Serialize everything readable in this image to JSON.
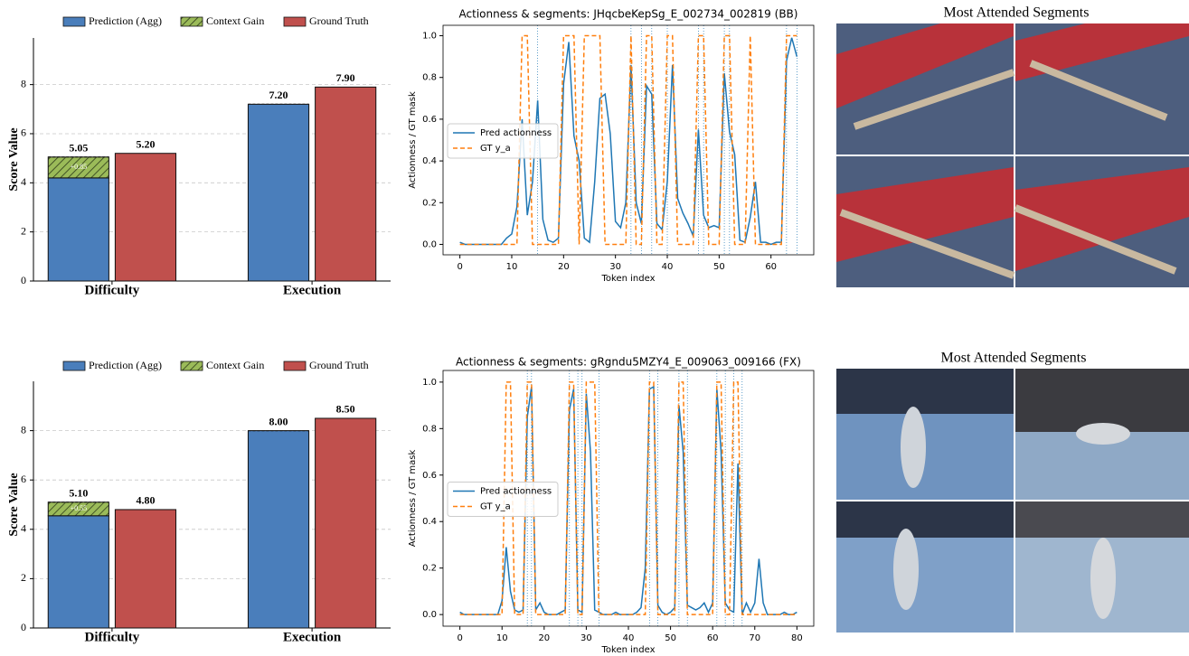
{
  "chart_data": [
    {
      "type": "bar",
      "ylabel": "Score Value",
      "categories": [
        "Difficulty",
        "Execution"
      ],
      "series": [
        {
          "name": "Prediction (Agg)",
          "color": "#4a7ebb",
          "values": [
            4.2,
            7.2
          ]
        },
        {
          "name": "Context Gain",
          "color": "#9bbb59",
          "hatch": true,
          "stacked": true,
          "values": [
            0.85,
            0
          ],
          "value_labels": [
            "+0.85",
            null
          ]
        },
        {
          "name": "Ground Truth",
          "color": "#c0504d",
          "values": [
            5.2,
            7.9
          ],
          "value_labels": [
            "5.20",
            "7.90"
          ]
        }
      ],
      "totals": [
        5.05,
        7.2
      ],
      "total_labels": [
        "5.05",
        "7.20"
      ],
      "ylim": [
        0,
        9.9
      ],
      "yticks": [
        0,
        2,
        4,
        6,
        8
      ],
      "grid": true,
      "legend": "top"
    },
    {
      "type": "line",
      "title": "Actionness & segments: JHqcbeKepSg_E_002734_002819 (BB)",
      "xlabel": "Token index",
      "ylabel": "Actionness / GT mask",
      "series": [
        {
          "name": "Pred actionness",
          "color": "#1f77b4",
          "values": [
            0.01,
            0,
            0,
            0,
            0,
            0,
            0,
            0,
            0,
            0.03,
            0.05,
            0.18,
            0.6,
            0.14,
            0.3,
            0.69,
            0.12,
            0.02,
            0.01,
            0.03,
            0.77,
            0.97,
            0.52,
            0.4,
            0.03,
            0.01,
            0.3,
            0.7,
            0.72,
            0.53,
            0.11,
            0.08,
            0.2,
            0.86,
            0.2,
            0.1,
            0.76,
            0.72,
            0.1,
            0.07,
            0.3,
            0.86,
            0.22,
            0.15,
            0.1,
            0.04,
            0.55,
            0.14,
            0.08,
            0.09,
            0.08,
            0.82,
            0.54,
            0.43,
            0.02,
            0.01,
            0.13,
            0.3,
            0.01,
            0.01,
            0,
            0.01,
            0.01,
            0.88,
            0.99,
            0.9
          ]
        },
        {
          "name": "GT y_a",
          "color": "#ff7f0e",
          "dashed": true,
          "values": [
            0,
            0,
            0,
            0,
            0,
            0,
            0,
            0,
            0,
            0,
            0,
            0,
            1,
            1,
            0,
            0,
            0,
            0,
            0,
            0,
            1,
            1,
            1,
            0,
            1,
            1,
            1,
            1,
            0,
            0,
            0,
            0,
            0,
            1,
            0,
            0,
            1,
            1,
            0,
            0,
            1,
            1,
            0,
            0,
            0,
            0,
            1,
            1,
            0,
            0,
            0,
            1,
            1,
            0,
            0,
            0,
            1,
            0,
            0,
            0,
            0,
            0,
            0,
            1,
            1,
            1
          ]
        }
      ],
      "segment_lines": [
        15,
        33,
        35,
        37,
        40,
        46,
        47,
        51,
        52,
        63,
        65
      ],
      "xlim": [
        -3.25,
        68.25
      ],
      "xticks": [
        0,
        10,
        20,
        30,
        40,
        50,
        60
      ],
      "ylim": [
        -0.05,
        1.05
      ],
      "yticks": [
        {
          "value": 0,
          "label": "0.0"
        },
        0.2,
        0.4,
        0.6,
        0.8,
        {
          "value": 1,
          "label": "1.0"
        }
      ],
      "legend": "center left"
    },
    {
      "type": "bar",
      "ylabel": "Score Value",
      "categories": [
        "Difficulty",
        "Execution"
      ],
      "series": [
        {
          "name": "Prediction (Agg)",
          "color": "#4a7ebb",
          "values": [
            4.55,
            8.0
          ]
        },
        {
          "name": "Context Gain",
          "color": "#9bbb59",
          "hatch": true,
          "stacked": true,
          "values": [
            0.55,
            0
          ],
          "value_labels": [
            "+0.55",
            null
          ]
        },
        {
          "name": "Ground Truth",
          "color": "#c0504d",
          "values": [
            4.8,
            8.5
          ],
          "value_labels": [
            "4.80",
            "8.50"
          ]
        }
      ],
      "totals": [
        5.1,
        8.0
      ],
      "total_labels": [
        "5.10",
        "8.00"
      ],
      "ylim": [
        0,
        10
      ],
      "yticks": [
        0,
        2,
        4,
        6,
        8
      ],
      "grid": true,
      "legend": "top"
    },
    {
      "type": "line",
      "title": "Actionness & segments: gRgndu5MZY4_E_009063_009166 (FX)",
      "xlabel": "Token index",
      "ylabel": "Actionness / GT mask",
      "series": [
        {
          "name": "Pred actionness",
          "color": "#1f77b4",
          "values": [
            0.01,
            0,
            0,
            0,
            0,
            0,
            0,
            0,
            0,
            0,
            0.06,
            0.29,
            0.1,
            0.02,
            0.01,
            0.02,
            0.85,
            0.98,
            0.02,
            0.05,
            0.01,
            0,
            0,
            0,
            0.01,
            0.02,
            0.88,
            0.97,
            0.02,
            0.01,
            0.95,
            0.7,
            0.02,
            0.01,
            0,
            0,
            0,
            0.01,
            0,
            0,
            0,
            0,
            0.01,
            0.03,
            0.2,
            0.97,
            0.98,
            0.04,
            0.01,
            0,
            0.01,
            0.03,
            0.9,
            0.7,
            0.04,
            0.03,
            0.02,
            0.03,
            0.05,
            0.01,
            0.05,
            0.97,
            0.7,
            0.05,
            0.02,
            0.01,
            0.65,
            0,
            0.05,
            0.01,
            0.05,
            0.24,
            0.05,
            0,
            0,
            0,
            0,
            0.01,
            0,
            0,
            0.01
          ]
        },
        {
          "name": "GT y_a",
          "color": "#ff7f0e",
          "dashed": true,
          "values": [
            0,
            0,
            0,
            0,
            0,
            0,
            0,
            0,
            0,
            0,
            0,
            1,
            1,
            0,
            0,
            0,
            1,
            1,
            0,
            0,
            0,
            0,
            0,
            0,
            0,
            0,
            1,
            1,
            0,
            0,
            1,
            1,
            1,
            0,
            0,
            0,
            0,
            0,
            0,
            0,
            0,
            0,
            0,
            0,
            0,
            1,
            1,
            0,
            0,
            0,
            0,
            0,
            1,
            1,
            0,
            0,
            0,
            0,
            0,
            0,
            0,
            1,
            1,
            0,
            0,
            1,
            1,
            0,
            0,
            0,
            0,
            0,
            0,
            0,
            0,
            0,
            0,
            0,
            0,
            0,
            0
          ]
        }
      ],
      "segment_lines": [
        16,
        17,
        26,
        28,
        29,
        33,
        45,
        47,
        52,
        54,
        61,
        63,
        65,
        67
      ],
      "xlim": [
        -4,
        84
      ],
      "xticks": [
        0,
        10,
        20,
        30,
        40,
        50,
        60,
        70,
        80
      ],
      "ylim": [
        -0.05,
        1.05
      ],
      "yticks": [
        {
          "value": 0,
          "label": "0.0"
        },
        0.2,
        0.4,
        0.6,
        0.8,
        {
          "value": 1,
          "label": "1.0"
        }
      ],
      "legend": "center left"
    }
  ],
  "image_panels": [
    {
      "title": "Most Attended Segments"
    },
    {
      "title": "Most Attended Segments"
    }
  ]
}
